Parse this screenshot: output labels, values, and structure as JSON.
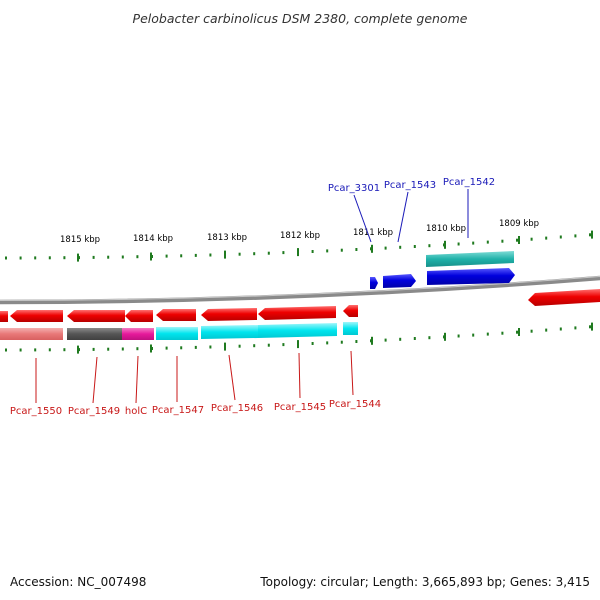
{
  "title": "Pelobacter carbinolicus DSM 2380, complete genome",
  "scale_labels": [
    "1815 kbp",
    "1814 kbp",
    "1813 kbp",
    "1812 kbp",
    "1811 kbp",
    "1810 kbp",
    "1809 kbp"
  ],
  "top_gene_labels": [
    "Pcar_3301",
    "Pcar_1543",
    "Pcar_1542"
  ],
  "bottom_gene_labels": [
    "Pcar_1550",
    "Pcar_1549",
    "holC",
    "Pcar_1547",
    "Pcar_1546",
    "Pcar_1545",
    "Pcar_1544"
  ],
  "footer": {
    "accession": "Accession: NC_007498",
    "topology": "Topology: circular; Length: 3,665,893 bp; Genes: 3,415"
  },
  "colors": {
    "backbone": "#8a8a8a",
    "tick": "#1f7a1f",
    "gene_red": "#ee0000",
    "gene_blue": "#0000dd",
    "cyan": "#00e5ee",
    "teal": "#20b2aa",
    "salmon": "#e87878",
    "gray": "#555555",
    "magenta": "#e6199b",
    "label_blue": "#1a1ab8",
    "label_red": "#c81818"
  }
}
